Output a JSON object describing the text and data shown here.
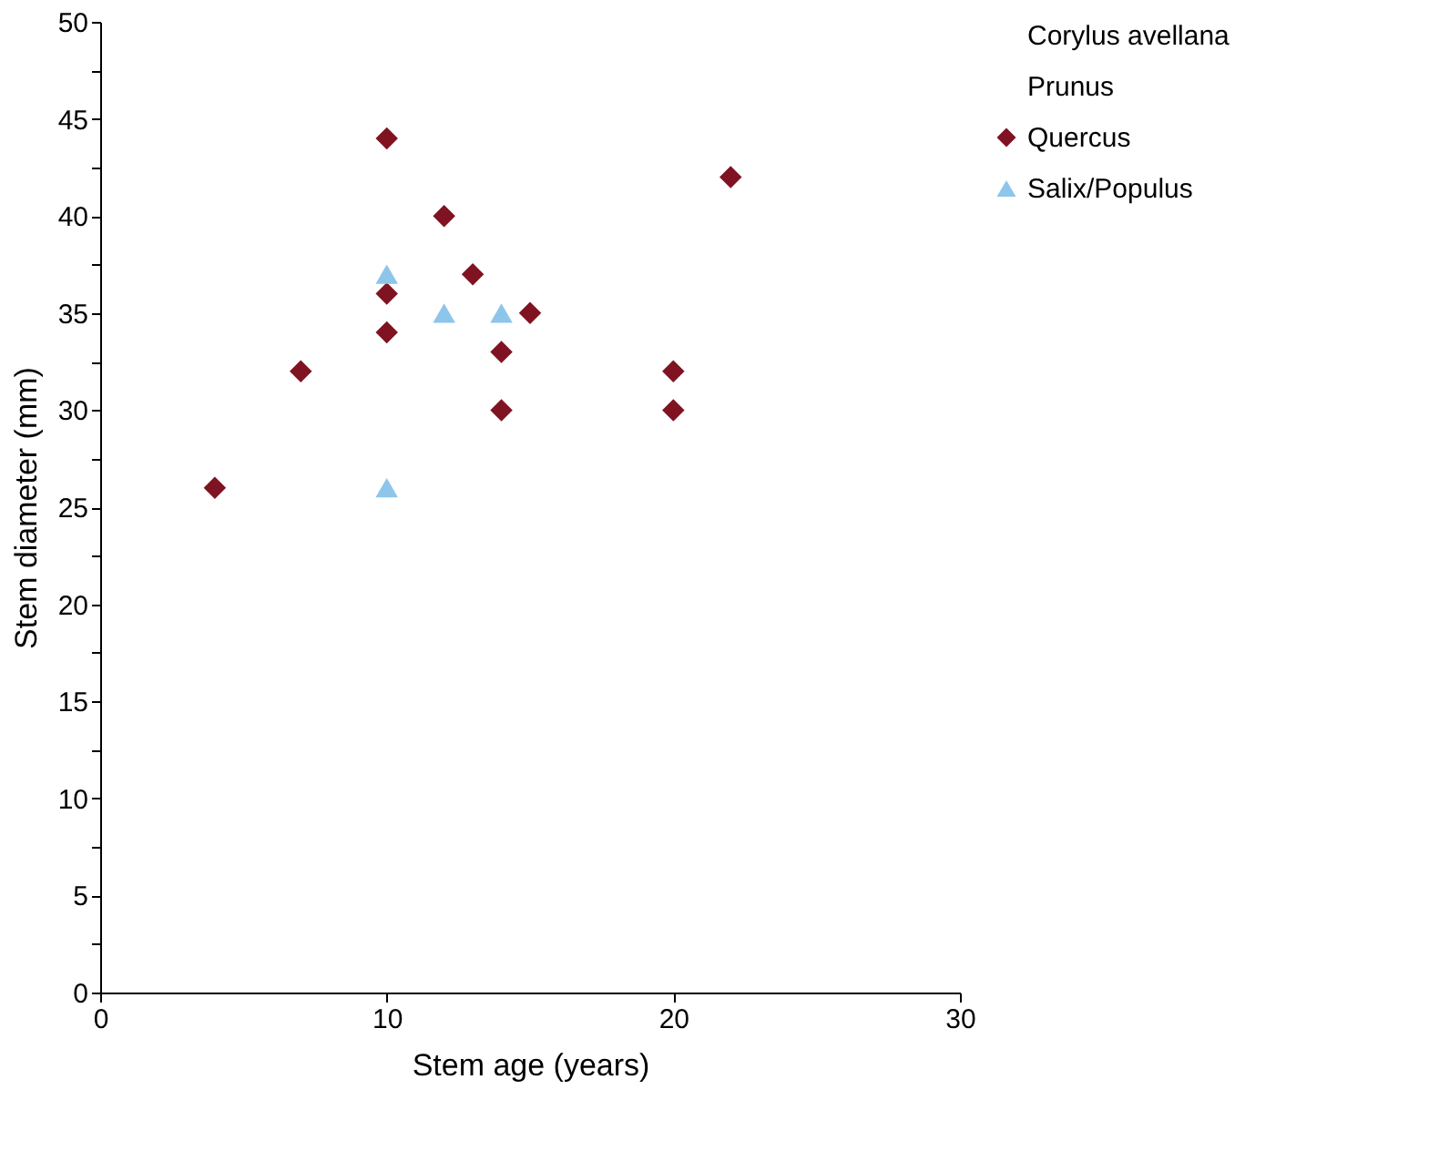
{
  "chart_data": {
    "type": "scatter",
    "xlabel": "Stem age (years)",
    "ylabel": "Stem diameter (mm)",
    "xlim": [
      0,
      30
    ],
    "xticks": [
      0,
      10,
      20,
      30
    ],
    "ylim": [
      0,
      50
    ],
    "yticks": [
      0,
      {
        "value": 2.5,
        "label": null
      },
      5,
      {
        "value": 7.5,
        "label": null
      },
      10,
      {
        "value": 12.5,
        "label": null
      },
      15,
      {
        "value": 17.5,
        "label": null
      },
      20,
      {
        "value": 22.5,
        "label": null
      },
      25,
      {
        "value": 27.5,
        "label": null
      },
      30,
      {
        "value": 32.5,
        "label": null
      },
      35,
      {
        "value": 37.5,
        "label": null
      },
      40,
      {
        "value": 42.5,
        "label": null
      },
      45,
      {
        "value": 47.5,
        "label": null
      },
      50
    ],
    "grid": false,
    "legend": "right",
    "series": [
      {
        "name": "Corylus avellana",
        "marker": "none"
      },
      {
        "name": "Prunus",
        "marker": "none"
      },
      {
        "name": "Quercus",
        "color": "#7f1322",
        "marker": "diamond",
        "x": [
          4,
          7,
          10,
          10,
          10,
          12,
          13,
          14,
          14,
          15,
          20,
          20,
          22
        ],
        "values": [
          26,
          32,
          44,
          36,
          34,
          40,
          37,
          33,
          30,
          35,
          32,
          30,
          42
        ]
      },
      {
        "name": "Salix/Populus",
        "color": "#8ec5ea",
        "marker": "triangle",
        "x": [
          10,
          10,
          12,
          14
        ],
        "values": [
          37,
          26,
          35,
          35
        ]
      }
    ]
  }
}
